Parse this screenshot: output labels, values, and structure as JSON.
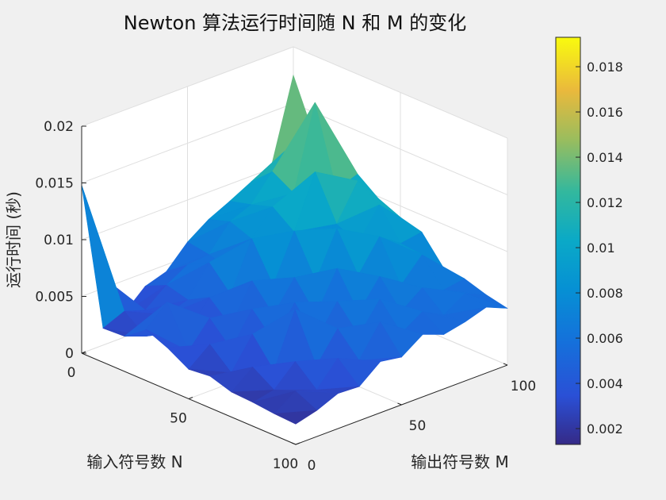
{
  "chart_data": {
    "type": "surface3d",
    "title": "Newton 算法运行时间随 N 和 M 的变化",
    "xlabel": "输入符号数 N",
    "ylabel": "输出符号数 M",
    "zlabel": "运行时间 (秒)",
    "x_range": [
      0,
      100
    ],
    "y_range": [
      0,
      100
    ],
    "z_range": [
      0,
      0.02
    ],
    "x_ticks": [
      "0",
      "50",
      "100"
    ],
    "y_ticks": [
      "0",
      "50",
      "100"
    ],
    "z_ticks": [
      "0",
      "0.005",
      "0.01",
      "0.015",
      "0.02"
    ],
    "grid": true,
    "colormap": "parula",
    "colorbar": {
      "range": [
        0.0013,
        0.0193
      ],
      "ticks": [
        "0.002",
        "0.004",
        "0.006",
        "0.008",
        "0.01",
        "0.012",
        "0.014",
        "0.016",
        "0.018"
      ],
      "placement": "right"
    },
    "grid_axis": [
      0,
      10,
      20,
      30,
      40,
      50,
      60,
      70,
      80,
      90,
      100
    ],
    "z_values": [
      [
        0.0148,
        0.006,
        0.0021,
        0.0038,
        0.0044,
        0.0063,
        0.0076,
        0.0085,
        0.0095,
        0.0105,
        0.0175
      ],
      [
        0.003,
        0.0038,
        0.0032,
        0.0047,
        0.0058,
        0.006,
        0.0082,
        0.009,
        0.0112,
        0.013,
        0.0128
      ],
      [
        0.0031,
        0.0024,
        0.0036,
        0.0042,
        0.0068,
        0.0055,
        0.0075,
        0.0096,
        0.0101,
        0.0174,
        0.0135
      ],
      [
        0.0045,
        0.0062,
        0.003,
        0.0052,
        0.0048,
        0.009,
        0.0067,
        0.0082,
        0.0128,
        0.0105,
        0.0112
      ],
      [
        0.0037,
        0.0027,
        0.0049,
        0.0035,
        0.0068,
        0.0057,
        0.0098,
        0.0076,
        0.009,
        0.0121,
        0.0098
      ],
      [
        0.0026,
        0.0041,
        0.003,
        0.0058,
        0.0046,
        0.0072,
        0.0062,
        0.0101,
        0.0081,
        0.0108,
        0.009
      ],
      [
        0.0028,
        0.0024,
        0.0051,
        0.0038,
        0.0065,
        0.0047,
        0.0081,
        0.0068,
        0.0095,
        0.0082,
        0.0085
      ],
      [
        0.0022,
        0.0037,
        0.0027,
        0.0074,
        0.004,
        0.0067,
        0.005,
        0.0075,
        0.006,
        0.008,
        0.0062
      ],
      [
        0.0021,
        0.0025,
        0.0043,
        0.0032,
        0.0058,
        0.0045,
        0.007,
        0.0052,
        0.0066,
        0.0057,
        0.006
      ],
      [
        0.0019,
        0.0032,
        0.0026,
        0.0047,
        0.0038,
        0.0065,
        0.0048,
        0.006,
        0.005,
        0.0062,
        0.0054
      ],
      [
        0.0018,
        0.0023,
        0.0031,
        0.003,
        0.0045,
        0.0042,
        0.0055,
        0.0048,
        0.0052,
        0.0058,
        0.005
      ]
    ]
  }
}
